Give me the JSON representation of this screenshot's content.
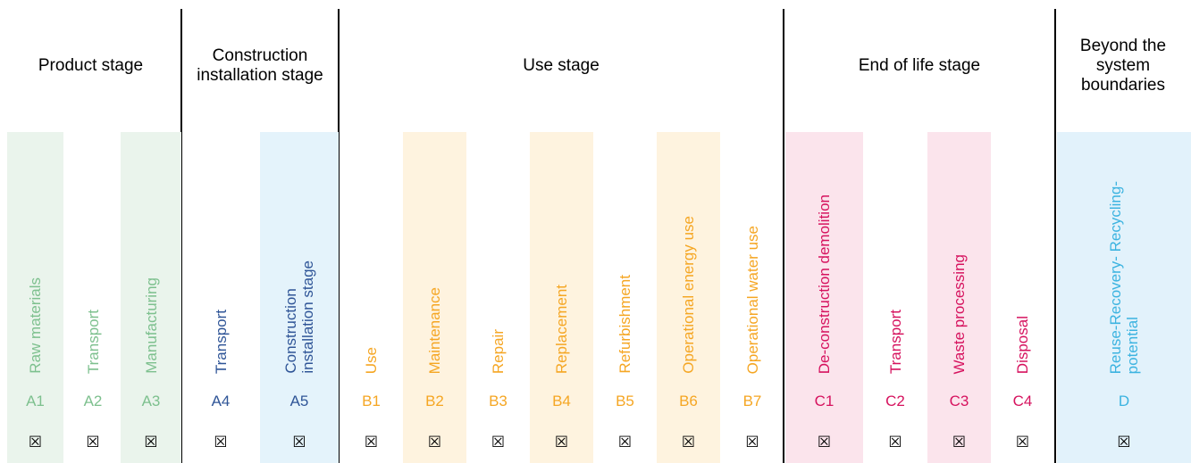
{
  "stages": [
    {
      "title": "Product stage"
    },
    {
      "title": "Construction\ninstallation stage"
    },
    {
      "title": "Use stage"
    },
    {
      "title": "End of life stage"
    },
    {
      "title": "Beyond the\nsystem\nboundaries"
    }
  ],
  "modules": [
    {
      "code": "A1",
      "label": "Raw materials",
      "mark": "☒",
      "color": "#7dc08e",
      "bg": "#eaf4ec"
    },
    {
      "code": "A2",
      "label": "Transport",
      "mark": "☒",
      "color": "#7dc08e",
      "bg": ""
    },
    {
      "code": "A3",
      "label": "Manufacturing",
      "mark": "☒",
      "color": "#7dc08e",
      "bg": "#eaf4ec"
    },
    {
      "code": "A4",
      "label": "Transport",
      "mark": "☒",
      "color": "#2f5597",
      "bg": ""
    },
    {
      "code": "A5",
      "label": "Construction\ninstallation stage",
      "mark": "☒",
      "color": "#2f5597",
      "bg": "#e4f3fb"
    },
    {
      "code": "B1",
      "label": "Use",
      "mark": "☒",
      "color": "#f5a623",
      "bg": ""
    },
    {
      "code": "B2",
      "label": "Maintenance",
      "mark": "☒",
      "color": "#f5a623",
      "bg": "#fef3df"
    },
    {
      "code": "B3",
      "label": "Repair",
      "mark": "☒",
      "color": "#f5a623",
      "bg": ""
    },
    {
      "code": "B4",
      "label": "Replacement",
      "mark": "☒",
      "color": "#f5a623",
      "bg": "#fef3df"
    },
    {
      "code": "B5",
      "label": "Refurbishment",
      "mark": "☒",
      "color": "#f5a623",
      "bg": ""
    },
    {
      "code": "B6",
      "label": "Operational energy use",
      "mark": "☒",
      "color": "#f5a623",
      "bg": "#fef3df"
    },
    {
      "code": "B7",
      "label": "Operational water use",
      "mark": "☒",
      "color": "#f5a623",
      "bg": ""
    },
    {
      "code": "C1",
      "label": "De-construction demolition",
      "mark": "☒",
      "color": "#d6125e",
      "bg": "#fbe4ec"
    },
    {
      "code": "C2",
      "label": "Transport",
      "mark": "☒",
      "color": "#d6125e",
      "bg": ""
    },
    {
      "code": "C3",
      "label": "Waste processing",
      "mark": "☒",
      "color": "#d6125e",
      "bg": "#fbe4ec"
    },
    {
      "code": "C4",
      "label": "Disposal",
      "mark": "☒",
      "color": "#d6125e",
      "bg": ""
    },
    {
      "code": "D",
      "label": "Reuse-Recovery- Recycling-\npotential",
      "mark": "☒",
      "color": "#3bb3e0",
      "bg": "#e2f2fb"
    }
  ]
}
